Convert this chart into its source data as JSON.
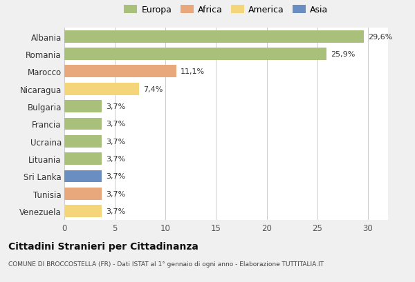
{
  "countries": [
    "Venezuela",
    "Tunisia",
    "Sri Lanka",
    "Lituania",
    "Ucraina",
    "Francia",
    "Bulgaria",
    "Nicaragua",
    "Marocco",
    "Romania",
    "Albania"
  ],
  "values": [
    3.7,
    3.7,
    3.7,
    3.7,
    3.7,
    3.7,
    3.7,
    7.4,
    11.1,
    25.9,
    29.6
  ],
  "labels": [
    "3,7%",
    "3,7%",
    "3,7%",
    "3,7%",
    "3,7%",
    "3,7%",
    "3,7%",
    "7,4%",
    "11,1%",
    "25,9%",
    "29,6%"
  ],
  "colors": [
    "#f5d57a",
    "#e8a87c",
    "#6b8ec2",
    "#a8c07a",
    "#a8c07a",
    "#a8c07a",
    "#a8c07a",
    "#f5d57a",
    "#e8a87c",
    "#a8c07a",
    "#a8c07a"
  ],
  "legend_labels": [
    "Europa",
    "Africa",
    "America",
    "Asia"
  ],
  "legend_colors": [
    "#a8c07a",
    "#e8a87c",
    "#f5d57a",
    "#6b8ec2"
  ],
  "title": "Cittadini Stranieri per Cittadinanza",
  "subtitle": "COMUNE DI BROCCOSTELLA (FR) - Dati ISTAT al 1° gennaio di ogni anno - Elaborazione TUTTITALIA.IT",
  "xlim": [
    0,
    32
  ],
  "xticks": [
    0,
    5,
    10,
    15,
    20,
    25,
    30
  ],
  "background_color": "#f0f0f0",
  "bar_background": "#ffffff",
  "grid_color": "#cccccc"
}
